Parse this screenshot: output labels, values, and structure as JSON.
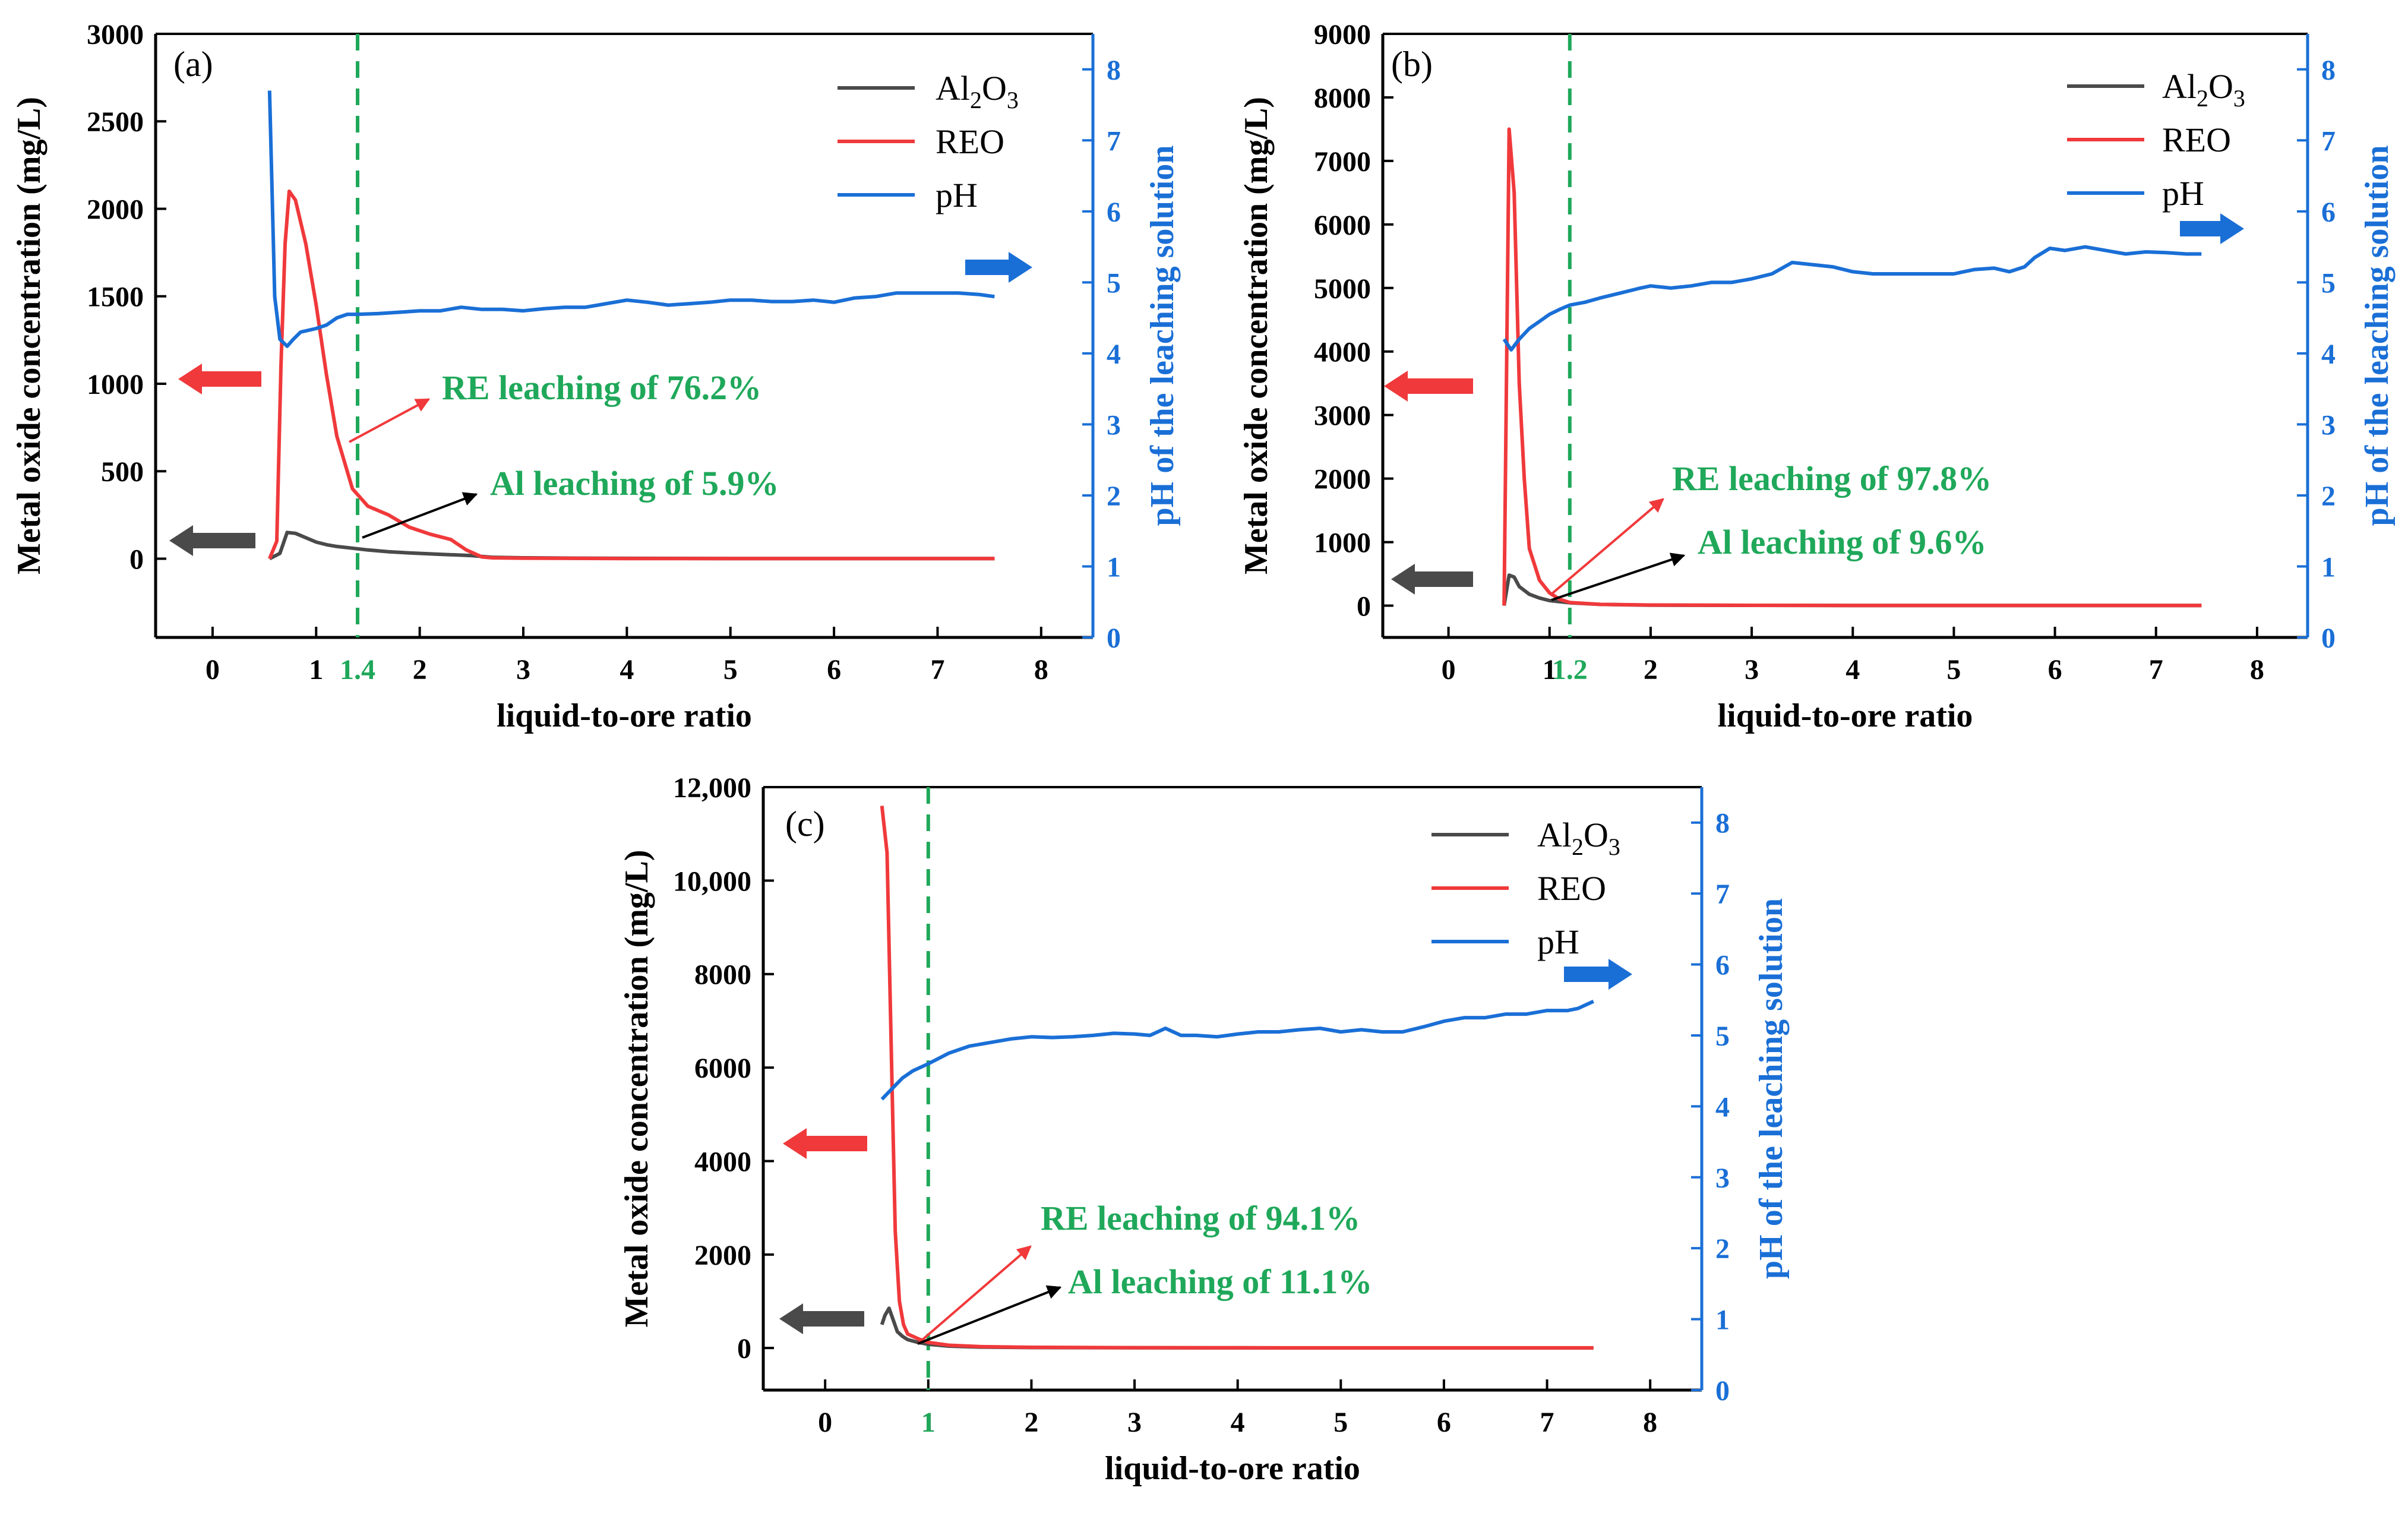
{
  "colors": {
    "al2o3": "#4a4a4a",
    "reo": "#f0393b",
    "ph": "#1a6fd6",
    "guide": "#1fa85a",
    "axis": "#000000",
    "ph_axis": "#1a6fd6",
    "arrow_left_reo": "#f0393b",
    "arrow_left_al": "#4a4a4a"
  },
  "shared": {
    "xlabel": "liquid-to-ore ratio",
    "ylabel": "Metal oxide concentration (mg/L)",
    "y2label": "pH of the leaching solution",
    "legend": {
      "al_base": "Al",
      "al_sub1": "2",
      "al_mid": "O",
      "al_sub2": "3",
      "reo": "REO",
      "ph": "pH"
    },
    "x_ticks": [
      0,
      1,
      2,
      3,
      4,
      5,
      6,
      7,
      8
    ],
    "y2_ticks": [
      0,
      1,
      2,
      3,
      4,
      5,
      6,
      7,
      8
    ]
  },
  "chart_data": [
    {
      "type": "line",
      "panel_label": "(a)",
      "xlim": [
        -0.55,
        8.5
      ],
      "ylim": [
        -450,
        3000
      ],
      "y2lim": [
        0,
        8.5
      ],
      "y_ticks": [
        0,
        500,
        1000,
        1500,
        2000,
        2500,
        3000
      ],
      "y_tick_labels": [
        "0",
        "500",
        "1000",
        "1500",
        "2000",
        "2500",
        "3000"
      ],
      "guide_x": 1.4,
      "guide_label": "1.4",
      "annotations": {
        "re": "RE leaching of 76.2%",
        "al": "Al  leaching of  5.9%"
      },
      "series": [
        {
          "name": "Al2O3",
          "axis": "left",
          "x": [
            0.55,
            0.65,
            0.72,
            0.8,
            0.9,
            1.0,
            1.1,
            1.2,
            1.35,
            1.5,
            1.7,
            1.9,
            2.2,
            2.5,
            2.7,
            3.0,
            3.5,
            4.0,
            5.0,
            6.0,
            7.0,
            7.55
          ],
          "y": [
            0,
            30,
            150,
            145,
            120,
            95,
            80,
            70,
            60,
            50,
            40,
            33,
            25,
            18,
            8,
            5,
            3,
            2,
            1,
            1,
            1,
            1
          ]
        },
        {
          "name": "REO",
          "axis": "left",
          "x": [
            0.55,
            0.62,
            0.66,
            0.7,
            0.74,
            0.8,
            0.9,
            1.0,
            1.1,
            1.2,
            1.35,
            1.5,
            1.7,
            1.9,
            2.1,
            2.3,
            2.45,
            2.6,
            2.7,
            3.0,
            3.5,
            4.0,
            5.0,
            6.0,
            7.0,
            7.55
          ],
          "y": [
            0,
            100,
            1100,
            1800,
            2100,
            2050,
            1800,
            1450,
            1050,
            700,
            400,
            300,
            250,
            180,
            140,
            110,
            50,
            10,
            5,
            3,
            2,
            1,
            1,
            1,
            1,
            1
          ]
        },
        {
          "name": "pH",
          "axis": "right",
          "x": [
            0.55,
            0.6,
            0.65,
            0.72,
            0.78,
            0.85,
            1.0,
            1.1,
            1.2,
            1.3,
            1.4,
            1.6,
            1.8,
            2.0,
            2.2,
            2.4,
            2.6,
            2.8,
            3.0,
            3.2,
            3.4,
            3.6,
            3.8,
            4.0,
            4.2,
            4.4,
            4.6,
            4.8,
            5.0,
            5.2,
            5.4,
            5.6,
            5.8,
            6.0,
            6.2,
            6.4,
            6.6,
            6.8,
            7.0,
            7.2,
            7.4,
            7.55
          ],
          "y": [
            7.7,
            4.8,
            4.2,
            4.1,
            4.2,
            4.3,
            4.35,
            4.4,
            4.5,
            4.55,
            4.55,
            4.56,
            4.58,
            4.6,
            4.6,
            4.65,
            4.62,
            4.62,
            4.6,
            4.63,
            4.65,
            4.65,
            4.7,
            4.75,
            4.72,
            4.68,
            4.7,
            4.72,
            4.75,
            4.75,
            4.73,
            4.73,
            4.75,
            4.72,
            4.78,
            4.8,
            4.85,
            4.85,
            4.85,
            4.85,
            4.83,
            4.8
          ]
        }
      ]
    },
    {
      "type": "line",
      "panel_label": "(b)",
      "xlim": [
        -0.65,
        8.5
      ],
      "ylim": [
        -500,
        9000
      ],
      "y2lim": [
        0,
        8.5
      ],
      "y_ticks": [
        0,
        1000,
        2000,
        3000,
        4000,
        5000,
        6000,
        7000,
        8000,
        9000
      ],
      "y_tick_labels": [
        "0",
        "1000",
        "2000",
        "3000",
        "4000",
        "5000",
        "6000",
        "7000",
        "8000",
        "9000"
      ],
      "guide_x": 1.2,
      "guide_label": "1.2",
      "annotations": {
        "re": "RE leaching of 97.8%",
        "al": "Al  leaching of  9.6%"
      },
      "series": [
        {
          "name": "Al2O3",
          "axis": "left",
          "x": [
            0.55,
            0.6,
            0.65,
            0.7,
            0.8,
            0.9,
            1.0,
            1.2,
            1.5,
            2.0,
            3.0,
            4.0,
            5.0,
            6.0,
            7.0,
            7.45
          ],
          "y": [
            0,
            480,
            450,
            300,
            180,
            120,
            80,
            45,
            20,
            8,
            5,
            3,
            2,
            2,
            2,
            2
          ]
        },
        {
          "name": "REO",
          "axis": "left",
          "x": [
            0.55,
            0.6,
            0.65,
            0.7,
            0.75,
            0.8,
            0.9,
            1.0,
            1.1,
            1.2,
            1.5,
            2.0,
            3.0,
            4.0,
            5.0,
            6.0,
            7.0,
            7.45
          ],
          "y": [
            0,
            7500,
            6500,
            3500,
            2000,
            900,
            400,
            200,
            100,
            50,
            20,
            10,
            5,
            3,
            2,
            2,
            2,
            2
          ]
        },
        {
          "name": "pH",
          "axis": "right",
          "x": [
            0.55,
            0.62,
            0.7,
            0.8,
            0.9,
            1.0,
            1.1,
            1.2,
            1.35,
            1.5,
            1.7,
            1.9,
            2.0,
            2.2,
            2.4,
            2.6,
            2.8,
            3.0,
            3.2,
            3.4,
            3.6,
            3.8,
            4.0,
            4.2,
            4.4,
            4.6,
            4.8,
            5.0,
            5.2,
            5.4,
            5.55,
            5.7,
            5.8,
            5.95,
            6.1,
            6.3,
            6.5,
            6.7,
            6.9,
            7.1,
            7.3,
            7.45
          ],
          "y": [
            4.2,
            4.05,
            4.2,
            4.35,
            4.45,
            4.55,
            4.62,
            4.68,
            4.72,
            4.78,
            4.85,
            4.92,
            4.95,
            4.92,
            4.95,
            5.0,
            5.0,
            5.05,
            5.12,
            5.28,
            5.25,
            5.22,
            5.15,
            5.12,
            5.12,
            5.12,
            5.12,
            5.12,
            5.18,
            5.2,
            5.15,
            5.22,
            5.35,
            5.48,
            5.45,
            5.5,
            5.45,
            5.4,
            5.43,
            5.42,
            5.4,
            5.4
          ]
        }
      ]
    },
    {
      "type": "line",
      "panel_label": "(c)",
      "xlim": [
        -0.6,
        8.5
      ],
      "ylim": [
        -900,
        12000
      ],
      "y2lim": [
        0,
        8.5
      ],
      "y_ticks": [
        0,
        2000,
        4000,
        6000,
        8000,
        10000,
        12000
      ],
      "y_tick_labels": [
        "0",
        "2000",
        "4000",
        "6000",
        "8000",
        "10,000",
        "12,000"
      ],
      "guide_x": 1.0,
      "guide_label": "1",
      "annotations": {
        "re": "RE leaching of 94.1%",
        "al": "Al  leaching of  11.1%"
      },
      "series": [
        {
          "name": "Al2O3",
          "axis": "left",
          "x": [
            0.55,
            0.58,
            0.62,
            0.66,
            0.7,
            0.75,
            0.8,
            0.9,
            1.0,
            1.2,
            1.5,
            2.0,
            3.0,
            4.0,
            5.0,
            6.0,
            7.0,
            7.45
          ],
          "y": [
            500,
            700,
            850,
            600,
            350,
            250,
            180,
            120,
            80,
            40,
            20,
            10,
            5,
            3,
            2,
            2,
            2,
            2
          ]
        },
        {
          "name": "REO",
          "axis": "left",
          "x": [
            0.55,
            0.6,
            0.65,
            0.68,
            0.72,
            0.76,
            0.8,
            0.9,
            1.0,
            1.2,
            1.5,
            2.0,
            3.0,
            4.0,
            5.0,
            6.0,
            7.0,
            7.45
          ],
          "y": [
            11600,
            10600,
            5500,
            2500,
            1000,
            500,
            300,
            200,
            120,
            60,
            30,
            15,
            8,
            5,
            3,
            3,
            3,
            3
          ]
        },
        {
          "name": "pH",
          "axis": "right",
          "x": [
            0.55,
            0.65,
            0.75,
            0.85,
            1.0,
            1.2,
            1.4,
            1.6,
            1.8,
            2.0,
            2.2,
            2.4,
            2.6,
            2.8,
            3.0,
            3.15,
            3.3,
            3.45,
            3.6,
            3.8,
            4.0,
            4.2,
            4.4,
            4.6,
            4.8,
            5.0,
            5.2,
            5.4,
            5.6,
            5.8,
            6.0,
            6.2,
            6.4,
            6.6,
            6.8,
            7.0,
            7.2,
            7.3,
            7.45
          ],
          "y": [
            4.1,
            4.25,
            4.4,
            4.5,
            4.6,
            4.75,
            4.85,
            4.9,
            4.95,
            4.98,
            4.97,
            4.98,
            5.0,
            5.03,
            5.02,
            5.0,
            5.1,
            5.0,
            5.0,
            4.98,
            5.02,
            5.05,
            5.05,
            5.08,
            5.1,
            5.05,
            5.08,
            5.05,
            5.05,
            5.12,
            5.2,
            5.25,
            5.25,
            5.3,
            5.3,
            5.35,
            5.35,
            5.38,
            5.48
          ]
        }
      ]
    }
  ]
}
